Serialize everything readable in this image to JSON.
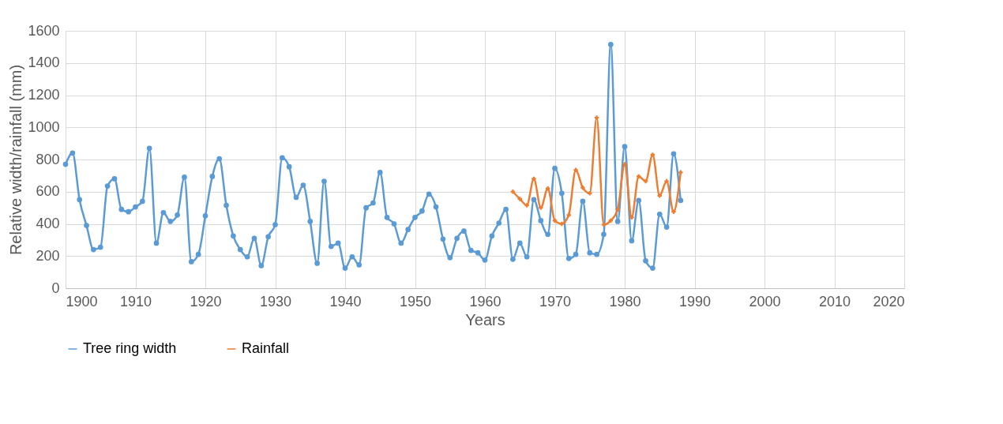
{
  "chart_data": {
    "type": "line",
    "xlabel": "Years",
    "ylabel": "Relative width/rainfall (mm)",
    "xlim": [
      1900,
      2020
    ],
    "xticks": [
      1900,
      1910,
      1920,
      1930,
      1940,
      1950,
      1960,
      1970,
      1980,
      1990,
      2000,
      2010,
      2020
    ],
    "ylim": [
      0,
      1600
    ],
    "yticks": [
      0,
      200,
      400,
      600,
      800,
      1000,
      1200,
      1400,
      1600
    ],
    "grid": true,
    "legend": "bottom",
    "series": [
      {
        "name": "Tree ring width",
        "color": "#5b9bd5",
        "marker": "circle",
        "x": [
          1900,
          1901,
          1902,
          1903,
          1904,
          1905,
          1906,
          1907,
          1908,
          1909,
          1910,
          1911,
          1912,
          1913,
          1914,
          1915,
          1916,
          1917,
          1918,
          1919,
          1920,
          1921,
          1922,
          1923,
          1924,
          1925,
          1926,
          1927,
          1928,
          1929,
          1930,
          1931,
          1932,
          1933,
          1934,
          1935,
          1936,
          1937,
          1938,
          1939,
          1940,
          1941,
          1942,
          1943,
          1944,
          1945,
          1946,
          1947,
          1948,
          1949,
          1950,
          1951,
          1952,
          1953,
          1954,
          1955,
          1956,
          1957,
          1958,
          1959,
          1960,
          1961,
          1962,
          1963,
          1964,
          1965,
          1966,
          1967,
          1968,
          1969,
          1970,
          1971,
          1972,
          1973,
          1974,
          1975,
          1976,
          1977,
          1978,
          1979,
          1980,
          1981,
          1982,
          1983,
          1984,
          1985,
          1986,
          1987,
          1988
        ],
        "values": [
          770,
          840,
          550,
          390,
          240,
          255,
          635,
          680,
          490,
          475,
          505,
          540,
          870,
          280,
          470,
          415,
          455,
          690,
          165,
          210,
          450,
          695,
          805,
          515,
          325,
          240,
          195,
          310,
          140,
          320,
          395,
          810,
          755,
          565,
          640,
          415,
          155,
          665,
          260,
          280,
          125,
          195,
          145,
          500,
          530,
          720,
          440,
          400,
          280,
          365,
          440,
          480,
          585,
          505,
          305,
          190,
          310,
          355,
          235,
          220,
          175,
          325,
          405,
          490,
          180,
          280,
          195,
          550,
          420,
          335,
          745,
          590,
          185,
          210,
          540,
          220,
          210,
          335,
          1515,
          415,
          880,
          295,
          545,
          170,
          125,
          460,
          380,
          835,
          545
        ]
      },
      {
        "name": "Rainfall",
        "color": "#ed7d31",
        "marker": "cross",
        "x": [
          1964,
          1965,
          1966,
          1967,
          1968,
          1969,
          1970,
          1971,
          1972,
          1973,
          1974,
          1975,
          1976,
          1977,
          1978,
          1979,
          1980,
          1981,
          1982,
          1983,
          1984,
          1985,
          1986,
          1987,
          1988
        ],
        "values": [
          600,
          555,
          515,
          680,
          500,
          620,
          420,
          400,
          455,
          735,
          625,
          590,
          1060,
          395,
          420,
          490,
          770,
          440,
          695,
          665,
          830,
          575,
          665,
          475,
          720
        ]
      }
    ]
  }
}
